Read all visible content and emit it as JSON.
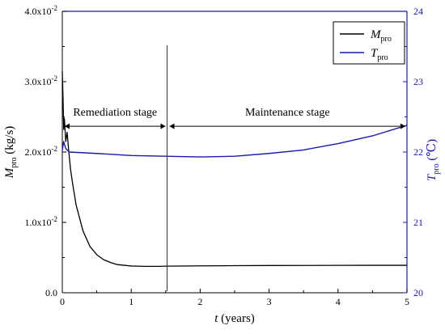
{
  "chart_data": {
    "type": "line",
    "title": "",
    "x_axis": {
      "label_main": "t",
      "label_unit": " (years)",
      "range": [
        0,
        5
      ],
      "ticks": [
        0,
        1,
        2,
        3,
        4,
        5
      ],
      "tick_labels": [
        "0",
        "1",
        "2",
        "3",
        "4",
        "5"
      ]
    },
    "y_axis_left": {
      "label_main": "M",
      "label_sub": "pro",
      "label_unit": " (kg/s)",
      "range": [
        0,
        0.04
      ],
      "ticks": [
        0,
        0.01,
        0.02,
        0.03,
        0.04
      ],
      "tick_labels": [
        {
          "base": "0.0",
          "exp": ""
        },
        {
          "base": "1.0x10",
          "exp": "-2"
        },
        {
          "base": "2.0x10",
          "exp": "-2"
        },
        {
          "base": "3.0x10",
          "exp": "-2"
        },
        {
          "base": "4.0x10",
          "exp": "-2"
        }
      ]
    },
    "y_axis_right": {
      "label_main": "T",
      "label_sub": "pro",
      "label_unit": " (℃)",
      "range": [
        20,
        24
      ],
      "ticks": [
        20,
        21,
        22,
        23,
        24
      ],
      "tick_labels": [
        "20",
        "21",
        "22",
        "23",
        "24"
      ]
    },
    "legend": {
      "placement": "top-right",
      "entries": [
        {
          "main": "M",
          "sub": "pro"
        },
        {
          "main": "T",
          "sub": "pro"
        }
      ]
    },
    "series": [
      {
        "label": "M_pro",
        "axis": "left",
        "color": "#000000",
        "x": [
          0,
          0.01,
          0.02,
          0.03,
          0.05,
          0.07,
          0.09,
          0.12,
          0.15,
          0.2,
          0.3,
          0.4,
          0.5,
          0.6,
          0.7,
          0.8,
          0.9,
          1.0,
          1.1,
          1.2,
          1.3,
          1.4,
          1.5,
          2.0,
          2.5,
          3.0,
          3.5,
          4.0,
          4.5,
          5.0
        ],
        "y": [
          0.0315,
          0.028,
          0.0232,
          0.0248,
          0.0215,
          0.0228,
          0.0205,
          0.0175,
          0.0155,
          0.0125,
          0.0088,
          0.0066,
          0.0054,
          0.0047,
          0.0043,
          0.004,
          0.0039,
          0.0038,
          0.00378,
          0.00375,
          0.00375,
          0.00375,
          0.00378,
          0.00382,
          0.00385,
          0.00387,
          0.00388,
          0.00389,
          0.0039,
          0.0039
        ]
      },
      {
        "label": "T_pro",
        "axis": "right",
        "color": "#1a1aa8",
        "x": [
          0,
          0.02,
          0.05,
          0.1,
          0.5,
          1.0,
          1.5,
          2.0,
          2.5,
          3.0,
          3.5,
          4.0,
          4.5,
          5.0
        ],
        "y": [
          22.02,
          22.15,
          22.05,
          22.0,
          21.98,
          21.95,
          21.94,
          21.93,
          21.94,
          21.98,
          22.03,
          22.12,
          22.23,
          22.38
        ]
      }
    ],
    "annotations": [
      {
        "text": "Remediation stage",
        "x_start": 0,
        "x_end": 1.52,
        "y": 0.0255
      },
      {
        "text": "Maintenance stage",
        "x_start": 1.52,
        "x_end": 5.0,
        "y": 0.0255
      }
    ],
    "divider_x": 1.52,
    "grid": false
  }
}
